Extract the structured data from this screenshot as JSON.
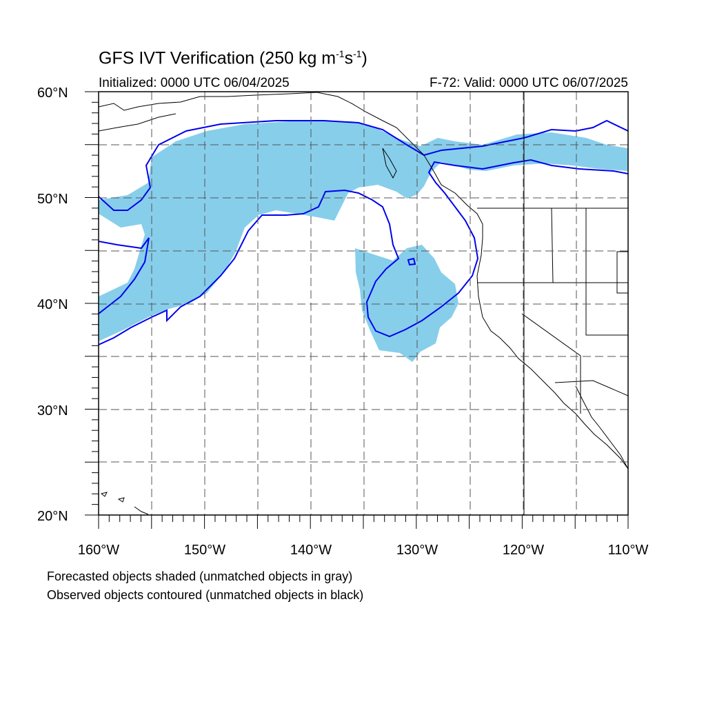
{
  "title": {
    "main_prefix": "GFS IVT Verification (250 kg m",
    "exp1": "-1",
    "mid": "s",
    "exp2": "-1",
    "suffix": ")"
  },
  "init_label": "Initialized: 0000 UTC 06/04/2025",
  "valid_label": "F-72: Valid: 0000 UTC 06/07/2025",
  "legend": {
    "forecast": "Forecasted objects shaded (unmatched objects in gray)",
    "observed": "Observed objects contoured (unmatched objects in black)"
  },
  "colors": {
    "forecast_fill": "#87ceeb",
    "observed_contour": "#0000ee",
    "coastline": "#000000",
    "grid": "#555555"
  },
  "axes": {
    "lat_labels": [
      "60°N",
      "50°N",
      "40°N",
      "30°N",
      "20°N"
    ],
    "lon_labels": [
      "160°W",
      "150°W",
      "140°W",
      "130°W",
      "120°W",
      "110°W"
    ],
    "lat_range": [
      20,
      60
    ],
    "lon_range": [
      -160,
      -110
    ],
    "grid": "dashed every 5°"
  }
}
